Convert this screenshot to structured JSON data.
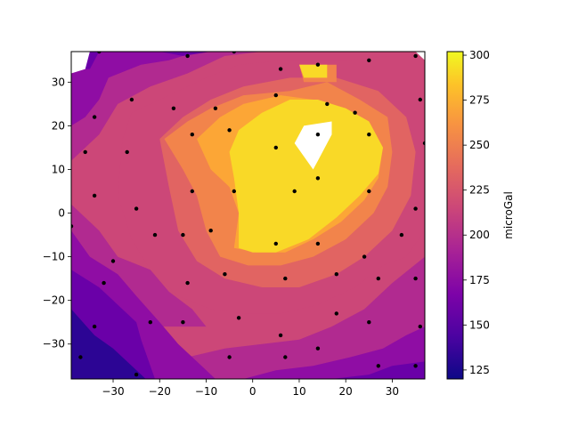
{
  "chart_data": {
    "type": "contourf",
    "xlim": [
      -39,
      37
    ],
    "ylim": [
      -38,
      37
    ],
    "x_ticks": [
      -30,
      -20,
      -10,
      0,
      10,
      20,
      30
    ],
    "y_ticks": [
      -30,
      -20,
      -10,
      0,
      10,
      20,
      30
    ],
    "x_tick_labels": [
      "−30",
      "−20",
      "−10",
      "0",
      "10",
      "20",
      "30"
    ],
    "y_tick_labels": [
      "−30",
      "−20",
      "−10",
      "0",
      "10",
      "20",
      "30"
    ],
    "colorbar": {
      "label": "microGal",
      "ticks": [
        125,
        150,
        175,
        200,
        225,
        250,
        275,
        300
      ],
      "tick_labels": [
        "125",
        "150",
        "175",
        "200",
        "225",
        "250",
        "275",
        "300"
      ],
      "range": [
        120,
        302
      ],
      "levels": [
        120,
        140,
        160,
        180,
        200,
        220,
        240,
        260,
        280,
        300
      ],
      "colors": [
        "#2c0594",
        "#6a00a8",
        "#8f0da4",
        "#b12a90",
        "#cc4778",
        "#e16462",
        "#f2844b",
        "#fca636",
        "#f9d927"
      ]
    },
    "contour_regions": [
      {
        "level_index": 0,
        "polygon": [
          [
            -39,
            -22
          ],
          [
            -34,
            -28
          ],
          [
            -30,
            -31
          ],
          [
            -26,
            -35
          ],
          [
            -23,
            -38
          ],
          [
            -39,
            -38
          ]
        ]
      },
      {
        "level_index": 1,
        "polygon": [
          [
            -39,
            -13
          ],
          [
            -33,
            -17
          ],
          [
            -29,
            -21
          ],
          [
            -25,
            -25
          ],
          [
            -24,
            -29
          ],
          [
            -21,
            -38
          ],
          [
            -39,
            -38
          ]
        ]
      },
      {
        "level_index": 1,
        "polygon": [
          [
            -33,
            37
          ],
          [
            -39,
            37
          ],
          [
            -39,
            33
          ],
          [
            -35,
            33
          ]
        ]
      },
      {
        "level_index": 1,
        "polygon": [
          [
            -20,
            37
          ],
          [
            -15,
            36
          ],
          [
            -9,
            37
          ]
        ]
      },
      {
        "level_index": 1,
        "polygon": [
          [
            37,
            -34
          ],
          [
            30,
            -35
          ],
          [
            25,
            -37
          ],
          [
            17,
            -38
          ],
          [
            37,
            -38
          ]
        ]
      },
      {
        "level_index": 2,
        "polygon": [
          [
            -39,
            20
          ],
          [
            -36,
            22
          ],
          [
            -33,
            26
          ],
          [
            -31,
            31
          ],
          [
            -24,
            34
          ],
          [
            -18,
            35
          ],
          [
            -12,
            37
          ],
          [
            -39,
            37
          ]
        ]
      },
      {
        "level_index": 2,
        "polygon": [
          [
            -39,
            -4
          ],
          [
            -35,
            -10
          ],
          [
            -29,
            -14
          ],
          [
            -25,
            -19
          ],
          [
            -20,
            -25
          ],
          [
            -16,
            -30
          ],
          [
            -11,
            -35
          ],
          [
            -8,
            -38
          ],
          [
            -39,
            -38
          ]
        ]
      },
      {
        "level_index": 2,
        "polygon": [
          [
            37,
            -26
          ],
          [
            33,
            -28
          ],
          [
            28,
            -31
          ],
          [
            21,
            -33
          ],
          [
            13,
            -35
          ],
          [
            5,
            -36
          ],
          [
            -2,
            -38
          ],
          [
            37,
            -38
          ]
        ]
      },
      {
        "level_index": 3,
        "polygon": [
          [
            -39,
            12
          ],
          [
            -33,
            18
          ],
          [
            -29,
            25
          ],
          [
            -22,
            29
          ],
          [
            -14,
            32
          ],
          [
            -6,
            36
          ],
          [
            2,
            37
          ],
          [
            -39,
            37
          ]
        ]
      },
      {
        "level_index": 3,
        "polygon": [
          [
            37,
            -10
          ],
          [
            30,
            -16
          ],
          [
            24,
            -22
          ],
          [
            17,
            -26
          ],
          [
            10,
            -29
          ],
          [
            2,
            -30
          ],
          [
            -6,
            -31
          ],
          [
            -14,
            -33
          ],
          [
            -20,
            -36
          ],
          [
            -27,
            -38
          ],
          [
            37,
            -38
          ]
        ]
      },
      {
        "level_index": 3,
        "polygon": [
          [
            -39,
            2
          ],
          [
            -33,
            -4
          ],
          [
            -29,
            -10
          ],
          [
            -22,
            -13
          ],
          [
            -18,
            -18
          ],
          [
            -13,
            -22
          ],
          [
            -10,
            -26
          ],
          [
            -39,
            -26
          ]
        ]
      },
      {
        "level_index": 4,
        "polygon": [
          [
            -28,
            17
          ],
          [
            -26,
            23
          ],
          [
            -18,
            27
          ],
          [
            -10,
            31
          ],
          [
            -3,
            34
          ],
          [
            7,
            35
          ],
          [
            20,
            35
          ],
          [
            30,
            36
          ],
          [
            37,
            36
          ],
          [
            37,
            -4
          ],
          [
            33,
            -10
          ],
          [
            28,
            -12
          ],
          [
            22,
            -17
          ],
          [
            14,
            -21
          ],
          [
            6,
            -23
          ],
          [
            -2,
            -23
          ],
          [
            -9,
            -22
          ],
          [
            -16,
            -19
          ],
          [
            -22,
            -13
          ],
          [
            -26,
            -6
          ],
          [
            -29,
            4
          ]
        ]
      },
      {
        "level_index": 5,
        "polygon": [
          [
            -20,
            17
          ],
          [
            -15,
            22
          ],
          [
            -9,
            26
          ],
          [
            -2,
            29
          ],
          [
            8,
            31
          ],
          [
            18,
            31
          ],
          [
            27,
            28
          ],
          [
            33,
            22
          ],
          [
            35,
            14
          ],
          [
            34,
            4
          ],
          [
            30,
            -4
          ],
          [
            24,
            -10
          ],
          [
            18,
            -14
          ],
          [
            10,
            -17
          ],
          [
            2,
            -17
          ],
          [
            -6,
            -15
          ],
          [
            -12,
            -11
          ],
          [
            -16,
            -4
          ],
          [
            -18,
            6
          ]
        ]
      },
      {
        "level_index": 6,
        "polygon": [
          [
            -19,
            17
          ],
          [
            -14,
            21
          ],
          [
            -9,
            24
          ],
          [
            -2,
            27
          ],
          [
            8,
            28
          ],
          [
            16,
            30
          ],
          [
            23,
            26
          ],
          [
            29,
            22
          ],
          [
            30,
            14
          ],
          [
            29,
            6
          ],
          [
            26,
            0
          ],
          [
            20,
            -6
          ],
          [
            13,
            -10
          ],
          [
            6,
            -12
          ],
          [
            -1,
            -12
          ],
          [
            -7,
            -10
          ],
          [
            -10,
            -4
          ],
          [
            -12,
            4
          ],
          [
            -15,
            10
          ]
        ]
      },
      {
        "level_index": 6,
        "polygon": [
          [
            10,
            34
          ],
          [
            18,
            34
          ],
          [
            18,
            30
          ],
          [
            11,
            30
          ]
        ]
      },
      {
        "level_index": 7,
        "polygon": [
          [
            -12,
            17
          ],
          [
            -7,
            22
          ],
          [
            -2,
            25
          ],
          [
            6,
            27
          ],
          [
            13,
            26
          ],
          [
            20,
            24
          ],
          [
            25,
            21
          ],
          [
            28,
            15
          ],
          [
            27,
            8
          ],
          [
            24,
            3
          ],
          [
            19,
            -2
          ],
          [
            13,
            -6
          ],
          [
            7,
            -9
          ],
          [
            1,
            -9
          ],
          [
            -4,
            -8
          ],
          [
            -3,
            0
          ],
          [
            -5,
            6
          ],
          [
            -9,
            10
          ]
        ]
      },
      {
        "level_index": 8,
        "polygon": [
          [
            -3,
            19
          ],
          [
            2,
            23
          ],
          [
            8,
            26
          ],
          [
            14,
            26
          ],
          [
            20,
            24
          ],
          [
            25,
            21
          ],
          [
            28,
            15
          ],
          [
            27,
            9
          ],
          [
            23,
            4
          ],
          [
            18,
            -1
          ],
          [
            12,
            -6
          ],
          [
            5,
            -9
          ],
          [
            0,
            -9
          ],
          [
            -3,
            -8
          ],
          [
            -3,
            0
          ],
          [
            -4,
            8
          ],
          [
            -5,
            14
          ]
        ]
      },
      {
        "level_index": 8,
        "polygon": [
          [
            10,
            34
          ],
          [
            16,
            34
          ],
          [
            16,
            31
          ],
          [
            11,
            31
          ]
        ]
      }
    ],
    "blank_regions": [
      {
        "polygon": [
          [
            11,
            20
          ],
          [
            17,
            21
          ],
          [
            17,
            18
          ],
          [
            14,
            12
          ],
          [
            13,
            10
          ],
          [
            9,
            16
          ]
        ]
      },
      {
        "polygon": [
          [
            -39,
            37
          ],
          [
            -35,
            37
          ],
          [
            -36,
            33
          ],
          [
            -39,
            32
          ]
        ]
      },
      {
        "polygon": [
          [
            35,
            37
          ],
          [
            37,
            37
          ],
          [
            37,
            35
          ]
        ]
      }
    ],
    "points": [
      [
        -33,
        37
      ],
      [
        -25,
        38
      ],
      [
        -14,
        36
      ],
      [
        -4,
        37
      ],
      [
        6,
        33
      ],
      [
        14,
        34
      ],
      [
        25,
        35
      ],
      [
        35,
        36
      ],
      [
        -34,
        22
      ],
      [
        -26,
        26
      ],
      [
        -17,
        24
      ],
      [
        -8,
        24
      ],
      [
        5,
        27
      ],
      [
        16,
        25
      ],
      [
        22,
        23
      ],
      [
        36,
        26
      ],
      [
        -36,
        14
      ],
      [
        -27,
        14
      ],
      [
        -13,
        18
      ],
      [
        -5,
        19
      ],
      [
        5,
        15
      ],
      [
        14,
        18
      ],
      [
        25,
        18
      ],
      [
        37,
        16
      ],
      [
        -34,
        4
      ],
      [
        -25,
        1
      ],
      [
        -13,
        5
      ],
      [
        -4,
        5
      ],
      [
        9,
        5
      ],
      [
        14,
        8
      ],
      [
        25,
        5
      ],
      [
        35,
        1
      ],
      [
        -39,
        -3
      ],
      [
        -21,
        -5
      ],
      [
        -15,
        -5
      ],
      [
        -9,
        -4
      ],
      [
        5,
        -7
      ],
      [
        14,
        -7
      ],
      [
        24,
        -10
      ],
      [
        32,
        -5
      ],
      [
        -30,
        -11
      ],
      [
        -32,
        -16
      ],
      [
        -14,
        -16
      ],
      [
        -6,
        -14
      ],
      [
        7,
        -15
      ],
      [
        18,
        -14
      ],
      [
        27,
        -15
      ],
      [
        35,
        -15
      ],
      [
        -34,
        -26
      ],
      [
        -22,
        -25
      ],
      [
        -15,
        -25
      ],
      [
        -3,
        -24
      ],
      [
        6,
        -28
      ],
      [
        18,
        -23
      ],
      [
        25,
        -25
      ],
      [
        36,
        -26
      ],
      [
        -37,
        -33
      ],
      [
        -25,
        -37
      ],
      [
        -13,
        -39
      ],
      [
        -5,
        -33
      ],
      [
        7,
        -33
      ],
      [
        14,
        -31
      ],
      [
        27,
        -35
      ],
      [
        35,
        -35
      ]
    ]
  }
}
